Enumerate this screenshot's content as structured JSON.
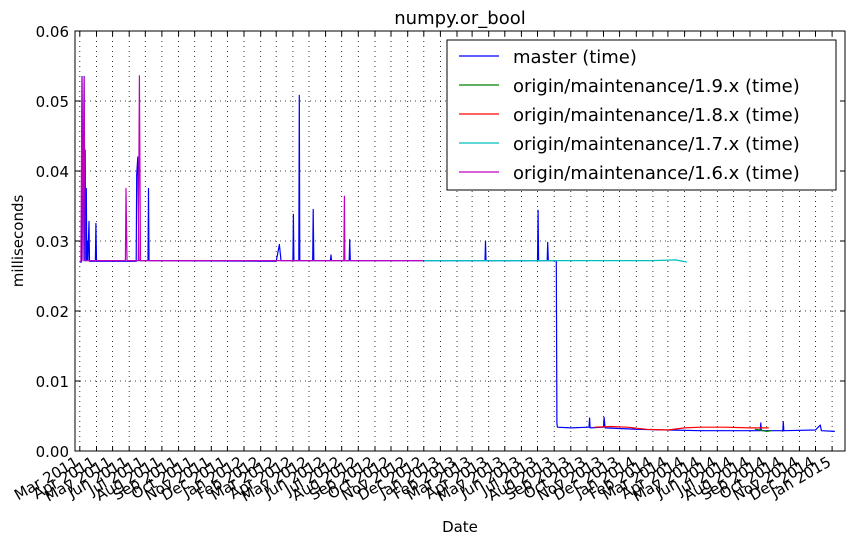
{
  "chart_data": {
    "type": "line",
    "title": "numpy.or_bool",
    "xlabel": "Date",
    "ylabel": "milliseconds",
    "xlim": [
      "2011-02-20",
      "2015-01-25"
    ],
    "ylim": [
      0,
      0.06
    ],
    "yticks": [
      0.0,
      0.01,
      0.02,
      0.03,
      0.04,
      0.05,
      0.06
    ],
    "ytick_labels": [
      "0.00",
      "0.01",
      "0.02",
      "0.03",
      "0.04",
      "0.05",
      "0.06"
    ],
    "xticks": [
      {
        "date": "2011-03-01",
        "label": "Mar 2011"
      },
      {
        "date": "2011-04-01",
        "label": "Apr 2011"
      },
      {
        "date": "2011-05-01",
        "label": "May 2011"
      },
      {
        "date": "2011-06-01",
        "label": "Jun 2011"
      },
      {
        "date": "2011-07-01",
        "label": "Jul 2011"
      },
      {
        "date": "2011-08-01",
        "label": "Aug 2011"
      },
      {
        "date": "2011-09-01",
        "label": "Sep 2011"
      },
      {
        "date": "2011-10-01",
        "label": "Oct 2011"
      },
      {
        "date": "2011-11-01",
        "label": "Nov 2011"
      },
      {
        "date": "2011-12-01",
        "label": "Dec 2011"
      },
      {
        "date": "2012-01-01",
        "label": "Jan 2012"
      },
      {
        "date": "2012-02-01",
        "label": "Feb 2012"
      },
      {
        "date": "2012-03-01",
        "label": "Mar 2012"
      },
      {
        "date": "2012-04-01",
        "label": "Apr 2012"
      },
      {
        "date": "2012-05-01",
        "label": "May 2012"
      },
      {
        "date": "2012-06-01",
        "label": "Jun 2012"
      },
      {
        "date": "2012-07-01",
        "label": "Jul 2012"
      },
      {
        "date": "2012-08-01",
        "label": "Aug 2012"
      },
      {
        "date": "2012-09-01",
        "label": "Sep 2012"
      },
      {
        "date": "2012-10-01",
        "label": "Oct 2012"
      },
      {
        "date": "2012-11-01",
        "label": "Nov 2012"
      },
      {
        "date": "2012-12-01",
        "label": "Dec 2012"
      },
      {
        "date": "2013-01-01",
        "label": "Jan 2013"
      },
      {
        "date": "2013-02-01",
        "label": "Feb 2013"
      },
      {
        "date": "2013-03-01",
        "label": "Mar 2013"
      },
      {
        "date": "2013-04-01",
        "label": "Apr 2013"
      },
      {
        "date": "2013-05-01",
        "label": "May 2013"
      },
      {
        "date": "2013-06-01",
        "label": "Jun 2013"
      },
      {
        "date": "2013-07-01",
        "label": "Jul 2013"
      },
      {
        "date": "2013-08-01",
        "label": "Aug 2013"
      },
      {
        "date": "2013-09-01",
        "label": "Sep 2013"
      },
      {
        "date": "2013-10-01",
        "label": "Oct 2013"
      },
      {
        "date": "2013-11-01",
        "label": "Nov 2013"
      },
      {
        "date": "2013-12-01",
        "label": "Dec 2013"
      },
      {
        "date": "2014-01-01",
        "label": "Jan 2014"
      },
      {
        "date": "2014-02-01",
        "label": "Feb 2014"
      },
      {
        "date": "2014-03-01",
        "label": "Mar 2014"
      },
      {
        "date": "2014-04-01",
        "label": "Apr 2014"
      },
      {
        "date": "2014-05-01",
        "label": "May 2014"
      },
      {
        "date": "2014-06-01",
        "label": "Jun 2014"
      },
      {
        "date": "2014-07-01",
        "label": "Jul 2014"
      },
      {
        "date": "2014-08-01",
        "label": "Aug 2014"
      },
      {
        "date": "2014-09-01",
        "label": "Sep 2014"
      },
      {
        "date": "2014-10-01",
        "label": "Oct 2014"
      },
      {
        "date": "2014-11-01",
        "label": "Nov 2014"
      },
      {
        "date": "2014-12-01",
        "label": "Dec 2014"
      },
      {
        "date": "2015-01-01",
        "label": "Jan 2015"
      }
    ],
    "grid": true,
    "legend_position": "top-right",
    "series": [
      {
        "name": "master (time)",
        "color": "#0000ff",
        "points": [
          [
            "2011-03-01",
            0.027
          ],
          [
            "2011-03-04",
            0.027
          ],
          [
            "2011-03-05",
            0.0535
          ],
          [
            "2011-03-07",
            0.0272
          ],
          [
            "2011-03-09",
            0.0535
          ],
          [
            "2011-03-10",
            0.0272
          ],
          [
            "2011-03-11",
            0.043
          ],
          [
            "2011-03-12",
            0.0272
          ],
          [
            "2011-03-13",
            0.0375
          ],
          [
            "2011-03-14",
            0.0272
          ],
          [
            "2011-03-15",
            0.03
          ],
          [
            "2011-03-16",
            0.0272
          ],
          [
            "2011-03-18",
            0.0328
          ],
          [
            "2011-03-19",
            0.0271
          ],
          [
            "2011-03-30",
            0.0271
          ],
          [
            "2011-03-31",
            0.0325
          ],
          [
            "2011-04-01",
            0.0271
          ],
          [
            "2011-06-14",
            0.0271
          ],
          [
            "2011-06-15",
            0.0395
          ],
          [
            "2011-06-17",
            0.042
          ],
          [
            "2011-06-19",
            0.0272
          ],
          [
            "2011-07-06",
            0.0272
          ],
          [
            "2011-07-07",
            0.0375
          ],
          [
            "2011-07-08",
            0.0272
          ],
          [
            "2012-03-01",
            0.0271
          ],
          [
            "2012-03-07",
            0.0295
          ],
          [
            "2012-03-10",
            0.0272
          ],
          [
            "2012-04-01",
            0.0272
          ],
          [
            "2012-04-02",
            0.0338
          ],
          [
            "2012-04-03",
            0.0272
          ],
          [
            "2012-04-12",
            0.0272
          ],
          [
            "2012-04-13",
            0.0508
          ],
          [
            "2012-04-14",
            0.0272
          ],
          [
            "2012-05-08",
            0.0272
          ],
          [
            "2012-05-09",
            0.0345
          ],
          [
            "2012-05-10",
            0.0272
          ],
          [
            "2012-06-10",
            0.0272
          ],
          [
            "2012-06-11",
            0.028
          ],
          [
            "2012-06-12",
            0.0272
          ],
          [
            "2012-07-15",
            0.0272
          ],
          [
            "2012-07-16",
            0.0302
          ],
          [
            "2012-07-17",
            0.0272
          ],
          [
            "2013-03-25",
            0.0272
          ],
          [
            "2013-03-26",
            0.03
          ],
          [
            "2013-03-27",
            0.0272
          ],
          [
            "2013-07-01",
            0.0272
          ],
          [
            "2013-07-02",
            0.0344
          ],
          [
            "2013-07-03",
            0.0272
          ],
          [
            "2013-07-19",
            0.0272
          ],
          [
            "2013-07-20",
            0.0298
          ],
          [
            "2013-07-21",
            0.0272
          ],
          [
            "2013-08-05",
            0.0272
          ],
          [
            "2013-08-06",
            0.004
          ],
          [
            "2013-08-07",
            0.0034
          ],
          [
            "2013-09-01",
            0.0033
          ],
          [
            "2013-10-05",
            0.0034
          ],
          [
            "2013-10-06",
            0.0047
          ],
          [
            "2013-10-07",
            0.0033
          ],
          [
            "2013-11-01",
            0.0034
          ],
          [
            "2013-11-02",
            0.0048
          ],
          [
            "2013-11-04",
            0.0033
          ],
          [
            "2014-01-01",
            0.0031
          ],
          [
            "2014-03-01",
            0.003
          ],
          [
            "2014-05-01",
            0.0029
          ],
          [
            "2014-07-01",
            0.0029
          ],
          [
            "2014-08-01",
            0.0029
          ],
          [
            "2014-08-20",
            0.0029
          ],
          [
            "2014-08-21",
            0.004
          ],
          [
            "2014-08-22",
            0.0029
          ],
          [
            "2014-10-01",
            0.0029
          ],
          [
            "2014-10-02",
            0.0042
          ],
          [
            "2014-10-03",
            0.0029
          ],
          [
            "2014-12-01",
            0.003
          ],
          [
            "2014-12-10",
            0.0037
          ],
          [
            "2014-12-12",
            0.0029
          ],
          [
            "2015-01-06",
            0.0028
          ]
        ]
      },
      {
        "name": "origin/maintenance/1.9.x (time)",
        "color": "#008000",
        "points": [
          [
            "2014-08-10",
            0.0031
          ],
          [
            "2014-08-20",
            0.003
          ],
          [
            "2014-09-01",
            0.0028
          ],
          [
            "2014-09-10",
            0.0029
          ]
        ]
      },
      {
        "name": "origin/maintenance/1.8.x (time)",
        "color": "#ff0000",
        "points": [
          [
            "2013-10-15",
            0.0034
          ],
          [
            "2013-11-15",
            0.0035
          ],
          [
            "2013-12-15",
            0.0034
          ],
          [
            "2014-01-20",
            0.0031
          ],
          [
            "2014-03-01",
            0.003
          ],
          [
            "2014-04-01",
            0.0033
          ],
          [
            "2014-05-01",
            0.0034
          ],
          [
            "2014-06-15",
            0.0034
          ],
          [
            "2014-08-01",
            0.0033
          ],
          [
            "2014-09-05",
            0.0033
          ]
        ]
      },
      {
        "name": "origin/maintenance/1.7.x (time)",
        "color": "#00bfbf",
        "points": [
          [
            "2012-12-01",
            0.0272
          ],
          [
            "2013-02-01",
            0.0272
          ],
          [
            "2013-04-01",
            0.0272
          ],
          [
            "2013-06-01",
            0.0272
          ],
          [
            "2013-08-01",
            0.0272
          ],
          [
            "2013-10-01",
            0.0272
          ],
          [
            "2013-12-01",
            0.0272
          ],
          [
            "2014-02-01",
            0.0272
          ],
          [
            "2014-03-15",
            0.0273
          ],
          [
            "2014-04-05",
            0.027
          ]
        ]
      },
      {
        "name": "origin/maintenance/1.6.x (time)",
        "color": "#bf00bf",
        "points": [
          [
            "2011-03-03",
            0.027
          ],
          [
            "2011-03-05",
            0.0534
          ],
          [
            "2011-03-07",
            0.0272
          ],
          [
            "2011-03-09",
            0.0534
          ],
          [
            "2011-03-11",
            0.0272
          ],
          [
            "2011-05-25",
            0.0272
          ],
          [
            "2011-05-26",
            0.0375
          ],
          [
            "2011-05-28",
            0.0272
          ],
          [
            "2011-06-18",
            0.0272
          ],
          [
            "2011-06-20",
            0.0536
          ],
          [
            "2011-06-22",
            0.0272
          ],
          [
            "2012-07-05",
            0.0272
          ],
          [
            "2012-07-06",
            0.0364
          ],
          [
            "2012-07-07",
            0.0272
          ],
          [
            "2012-09-01",
            0.0272
          ],
          [
            "2012-12-01",
            0.0272
          ]
        ]
      }
    ]
  }
}
